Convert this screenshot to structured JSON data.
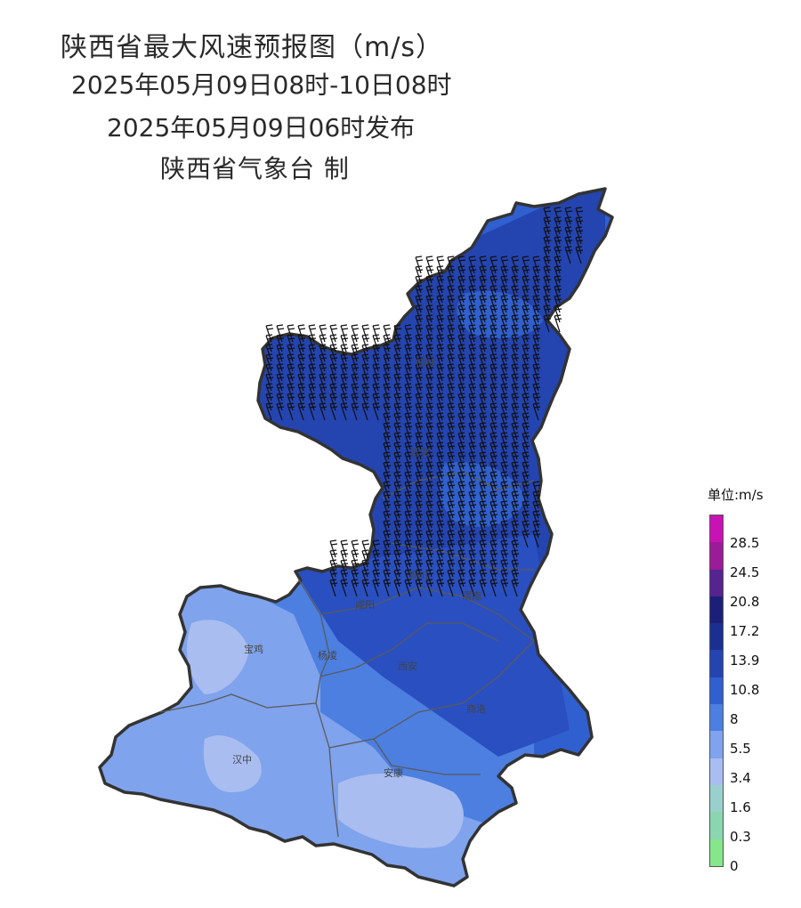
{
  "title": {
    "line1": "陕西省最大风速预报图（m/s）",
    "line2": "2025年05月09日08时-10日08时",
    "line3": "2025年05月09日06时发布",
    "line4": "陕西省气象台 制"
  },
  "legend": {
    "unit_label": "单位:m/s",
    "levels": [
      {
        "label": "0",
        "color": "#86e68c"
      },
      {
        "label": "0.3",
        "color": "#8ad6b0"
      },
      {
        "label": "1.6",
        "color": "#9ad0cc"
      },
      {
        "label": "3.4",
        "color": "#a9bdf0"
      },
      {
        "label": "5.5",
        "color": "#7fa3ec"
      },
      {
        "label": "8",
        "color": "#4c7fe0"
      },
      {
        "label": "10.8",
        "color": "#3060cf"
      },
      {
        "label": "13.9",
        "color": "#2444b0"
      },
      {
        "label": "17.2",
        "color": "#1a2f8f"
      },
      {
        "label": "20.8",
        "color": "#1c1f78"
      },
      {
        "label": "24.5",
        "color": "#56248e"
      },
      {
        "label": "28.5",
        "color": "#9a1c96"
      },
      {
        "label": "",
        "color": "#c812b4"
      }
    ]
  },
  "cities": [
    {
      "name": "宝鸡"
    },
    {
      "name": "杨凌"
    },
    {
      "name": "西安"
    },
    {
      "name": "咸阳"
    },
    {
      "name": "渭南"
    },
    {
      "name": "铜川"
    },
    {
      "name": "延安"
    },
    {
      "name": "榆林"
    },
    {
      "name": "汉中"
    },
    {
      "name": "安康"
    },
    {
      "name": "商洛"
    }
  ],
  "colors": {
    "province_outline": "#333333",
    "city_boundary": "#5a5a5a",
    "wind_barb": "#111111"
  }
}
